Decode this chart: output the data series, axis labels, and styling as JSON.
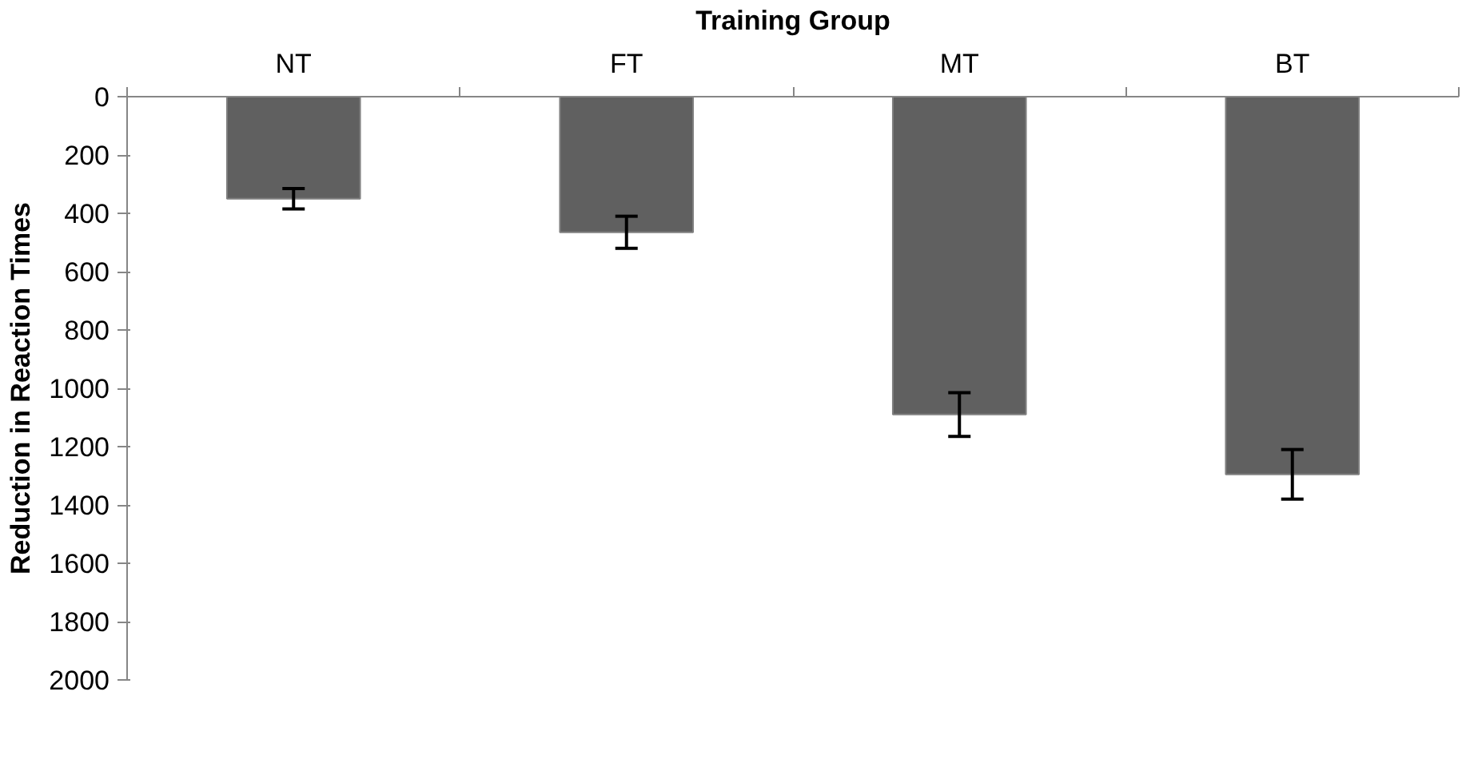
{
  "chart_data": {
    "type": "bar",
    "xlabel": "Training Group",
    "ylabel": "Reduction in Reaction Times",
    "categories": [
      "NT",
      "FT",
      "MT",
      "BT"
    ],
    "values": [
      350,
      465,
      1090,
      1295
    ],
    "errors": [
      35,
      55,
      75,
      85
    ],
    "color": "#606060",
    "ylim": [
      2000,
      0
    ],
    "yticks": [
      0,
      200,
      400,
      600,
      800,
      1000,
      1200,
      1400,
      1600,
      1800,
      2000
    ],
    "grid": false
  }
}
